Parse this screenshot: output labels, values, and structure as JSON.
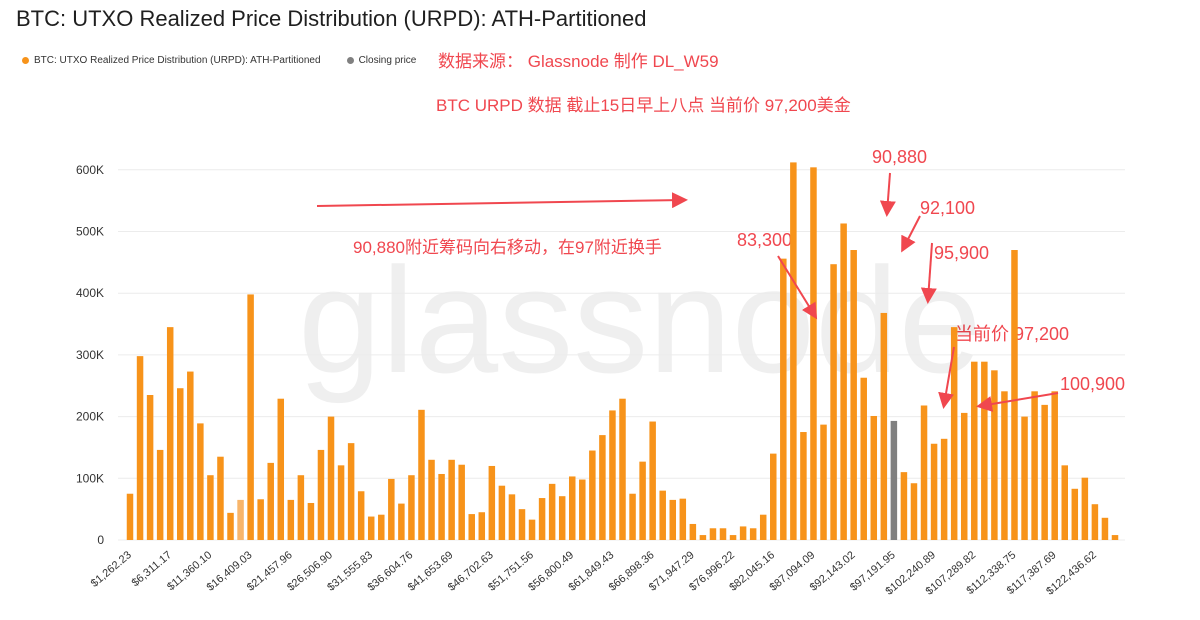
{
  "title": "BTC: UTXO Realized Price Distribution (URPD): ATH-Partitioned",
  "legend": [
    {
      "label": "BTC: UTXO Realized Price Distribution (URPD): ATH-Partitioned",
      "color": "#f7931a"
    },
    {
      "label": "Closing price",
      "color": "#808080"
    }
  ],
  "notes": {
    "source": "数据来源： Glassnode  制作 DL_W59",
    "date": "BTC URPD 数据 截止15日早上八点  当前价 97,200美金",
    "movement": "90,880附近筹码向右移动，在97附近换手"
  },
  "annotations": [
    {
      "text": "83,300"
    },
    {
      "text": "90,880"
    },
    {
      "text": "92,100"
    },
    {
      "text": "95,900"
    },
    {
      "text": "当前价 97,200"
    },
    {
      "text": "100,900"
    }
  ],
  "watermark": "glassnode",
  "chart_data": {
    "type": "bar",
    "title": "BTC: UTXO Realized Price Distribution (URPD): ATH-Partitioned",
    "xlabel": "",
    "ylabel": "",
    "ylim": [
      0,
      620000
    ],
    "yticks": [
      0,
      100000,
      200000,
      300000,
      400000,
      500000,
      600000
    ],
    "ytick_labels": [
      "0",
      "100K",
      "200K",
      "300K",
      "400K",
      "500K",
      "600K"
    ],
    "xtick_labels": [
      "$1,262.23",
      "$6,311.17",
      "$11,360.10",
      "$16,409.03",
      "$21,457.96",
      "$26,506.90",
      "$31,555.83",
      "$36,604.76",
      "$41,653.69",
      "$46,702.63",
      "$51,751.56",
      "$56,800.49",
      "$61,849.43",
      "$66,898.36",
      "$71,947.29",
      "$76,996.22",
      "$82,045.16",
      "$87,094.09",
      "$92,143.02",
      "$97,191.95",
      "$102,240.89",
      "$107,289.82",
      "$112,338.75",
      "$117,387.69",
      "$122,436.62"
    ],
    "xtick_every": 4,
    "grid": true,
    "legend_position": "top-left",
    "closing_price_index": 76,
    "highlight_light_index": 11,
    "series": [
      {
        "name": "BTC: UTXO Realized Price Distribution (URPD): ATH-Partitioned",
        "values": [
          75000,
          298000,
          235000,
          146000,
          345000,
          246000,
          273000,
          189000,
          105000,
          135000,
          44000,
          65000,
          398000,
          66000,
          125000,
          229000,
          65000,
          105000,
          60000,
          146000,
          200000,
          121000,
          157000,
          79000,
          38000,
          41000,
          99000,
          59000,
          105000,
          211000,
          130000,
          107000,
          130000,
          122000,
          42000,
          45000,
          120000,
          88000,
          74000,
          50000,
          33000,
          68000,
          91000,
          71000,
          103000,
          98000,
          145000,
          170000,
          210000,
          229000,
          75000,
          127000,
          192000,
          80000,
          65000,
          67000,
          26000,
          8000,
          19000,
          19000,
          8000,
          22000,
          19000,
          41000,
          140000,
          456000,
          612000,
          175000,
          604000,
          187000,
          447000,
          513000,
          470000,
          263000,
          201000,
          368000,
          193000,
          110000,
          92000,
          218000,
          156000,
          164000,
          345000,
          206000,
          289000,
          289000,
          275000,
          241000,
          470000,
          200000,
          241000,
          219000,
          241000,
          121000,
          83000,
          101000,
          58000,
          36000,
          8000
        ]
      }
    ]
  }
}
